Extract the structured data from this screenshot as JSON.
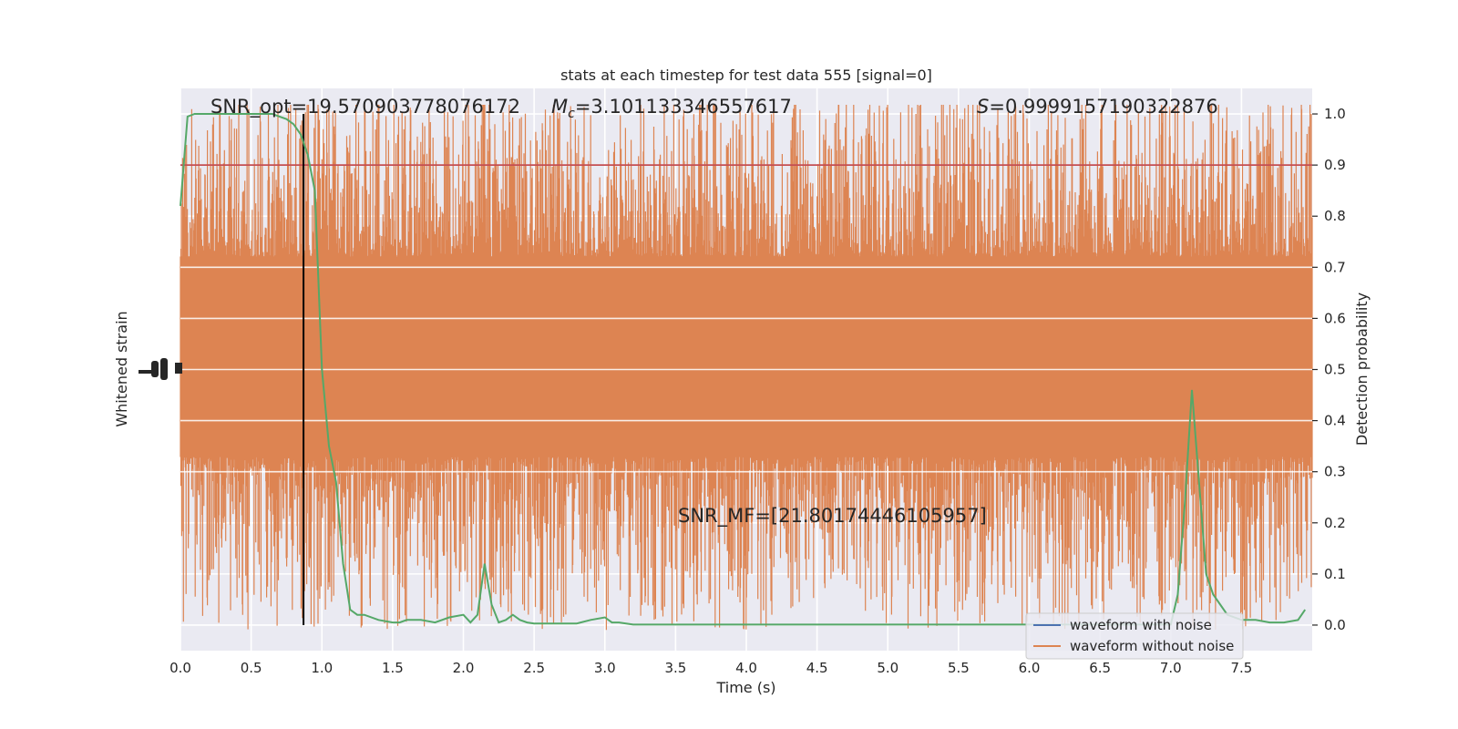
{
  "chart_data": {
    "type": "line",
    "title": "stats at each timestep for test data 555 [signal=0]",
    "xlabel": "Time (s)",
    "ylabel_left": "Whitened strain",
    "ylabel_right": "Detection probability",
    "xlim": [
      0.0,
      8.0
    ],
    "ylim_right": [
      -0.05,
      1.05
    ],
    "xticks": [
      0.0,
      0.5,
      1.0,
      1.5,
      2.0,
      2.5,
      3.0,
      3.5,
      4.0,
      4.5,
      5.0,
      5.5,
      6.0,
      6.5,
      7.0,
      7.5
    ],
    "xtick_labels": [
      "0.0",
      "0.5",
      "1.0",
      "1.5",
      "2.0",
      "2.5",
      "3.0",
      "3.5",
      "4.0",
      "4.5",
      "5.0",
      "5.5",
      "6.0",
      "6.5",
      "7.0",
      "7.5"
    ],
    "yticks_right": [
      0.0,
      0.1,
      0.2,
      0.3,
      0.4,
      0.5,
      0.6,
      0.7,
      0.8,
      0.9,
      1.0
    ],
    "ytick_labels_right": [
      "0.0",
      "0.1",
      "0.2",
      "0.3",
      "0.4",
      "0.5",
      "0.6",
      "0.7",
      "0.8",
      "0.9",
      "1.0"
    ],
    "grid": true,
    "legend_position": "lower-right",
    "annotations": {
      "snr_opt": "SNR_opt=19.570903778076172",
      "mc_symbol": "M",
      "mc_sub": "c",
      "mc_value": "=3.101133346557617",
      "s_symbol": "S",
      "s_value": "=0.9999157190322876",
      "snr_mf": "SNR_MF=[21.80174446105957]"
    },
    "threshold": 0.9,
    "event_time": 0.87,
    "series": [
      {
        "name": "waveform with noise",
        "color": "#4c72b0"
      },
      {
        "name": "waveform without noise",
        "color": "#dd8452"
      }
    ],
    "detection_probability": {
      "color": "#55a868",
      "x": [
        0.0,
        0.05,
        0.1,
        0.15,
        0.2,
        0.3,
        0.4,
        0.5,
        0.6,
        0.65,
        0.7,
        0.75,
        0.8,
        0.85,
        0.9,
        0.95,
        1.0,
        1.05,
        1.1,
        1.15,
        1.2,
        1.25,
        1.3,
        1.4,
        1.5,
        1.55,
        1.6,
        1.7,
        1.8,
        1.9,
        2.0,
        2.05,
        2.1,
        2.15,
        2.2,
        2.25,
        2.3,
        2.35,
        2.4,
        2.45,
        2.5,
        2.6,
        2.8,
        2.9,
        3.0,
        3.05,
        3.1,
        3.2,
        3.5,
        4.0,
        4.5,
        5.0,
        5.5,
        5.8,
        6.0,
        6.5,
        7.0,
        7.05,
        7.1,
        7.15,
        7.2,
        7.25,
        7.3,
        7.35,
        7.4,
        7.5,
        7.6,
        7.7,
        7.8,
        7.9,
        7.95
      ],
      "y": [
        0.82,
        0.995,
        1.0,
        1.0,
        1.0,
        1.0,
        1.0,
        1.0,
        1.0,
        1.0,
        0.995,
        0.99,
        0.98,
        0.96,
        0.92,
        0.85,
        0.5,
        0.35,
        0.28,
        0.12,
        0.03,
        0.02,
        0.02,
        0.01,
        0.005,
        0.005,
        0.01,
        0.01,
        0.005,
        0.015,
        0.02,
        0.005,
        0.02,
        0.12,
        0.04,
        0.005,
        0.01,
        0.02,
        0.01,
        0.005,
        0.003,
        0.003,
        0.003,
        0.01,
        0.015,
        0.005,
        0.005,
        0.001,
        0.001,
        0.001,
        0.001,
        0.001,
        0.001,
        0.001,
        0.001,
        0.001,
        0.001,
        0.06,
        0.24,
        0.46,
        0.28,
        0.1,
        0.06,
        0.04,
        0.02,
        0.01,
        0.01,
        0.005,
        0.005,
        0.01,
        0.03
      ]
    }
  }
}
